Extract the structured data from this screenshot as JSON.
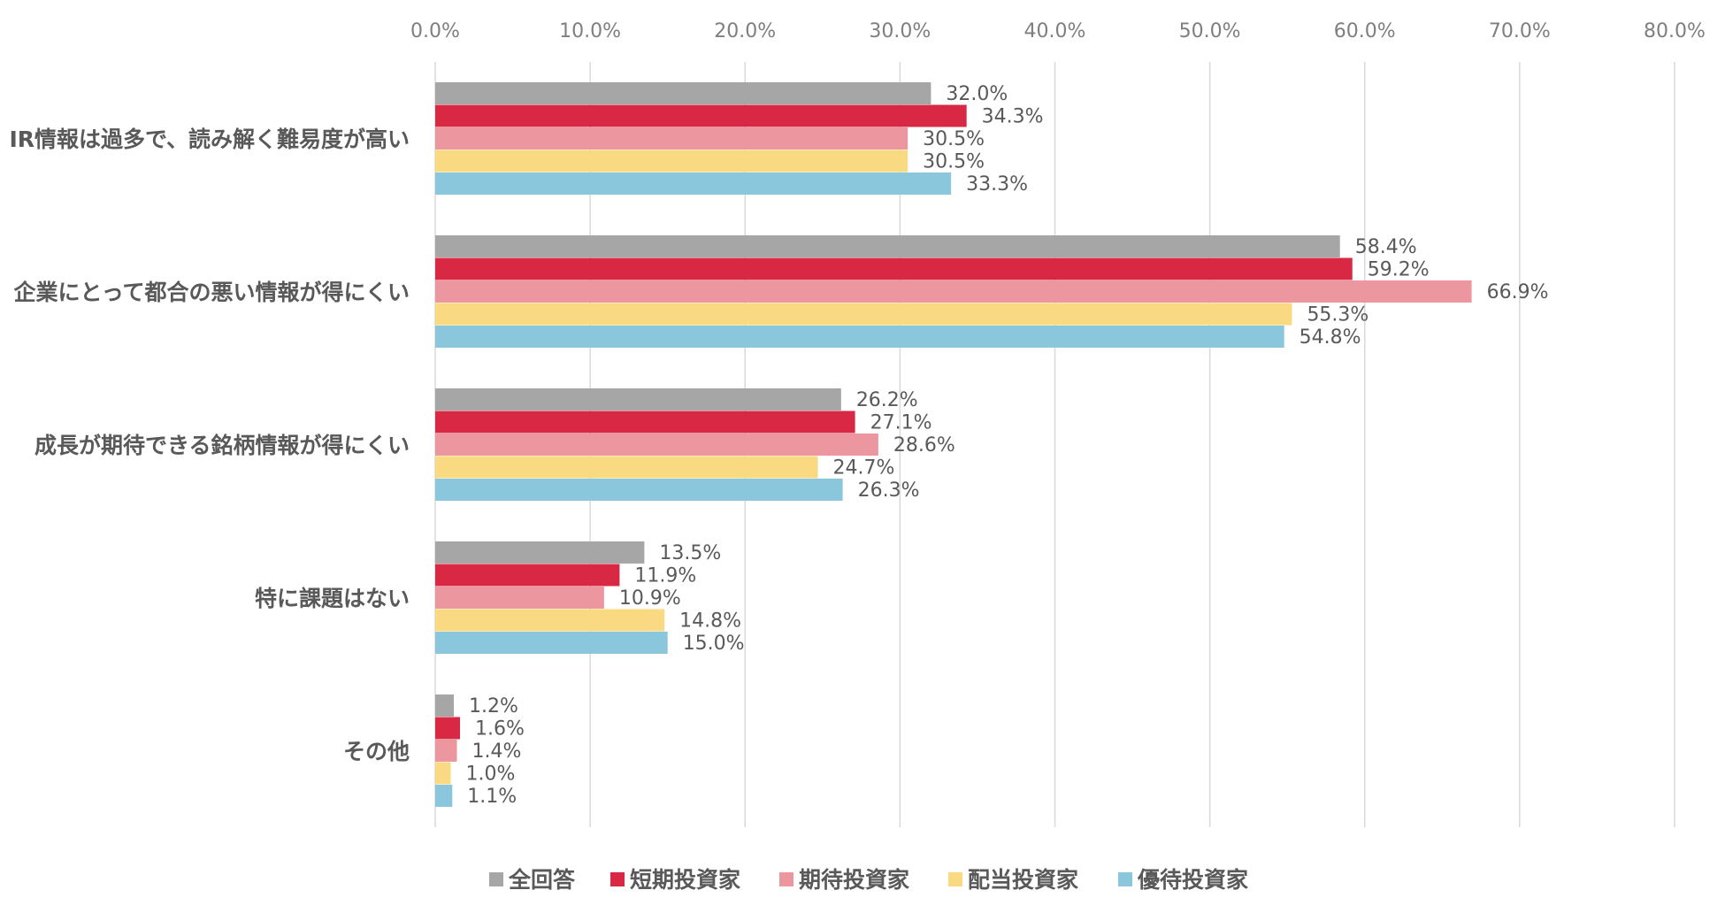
{
  "chart_data": {
    "type": "bar",
    "orientation": "horizontal",
    "title": "",
    "xlabel": "",
    "ylabel": "",
    "xlim": [
      0,
      80
    ],
    "x_ticks": [
      "0.0%",
      "10.0%",
      "20.0%",
      "30.0%",
      "40.0%",
      "50.0%",
      "60.0%",
      "70.0%",
      "80.0%"
    ],
    "x_tick_values": [
      0,
      10,
      20,
      30,
      40,
      50,
      60,
      70,
      80
    ],
    "x_axis_position": "top",
    "grid": true,
    "legend_position": "bottom",
    "categories": [
      "IR情報は過多で、読み解く難易度が高い",
      "企業にとって都合の悪い情報が得にくい",
      "成長が期待できる銘柄情報が得にくい",
      "特に課題はない",
      "その他"
    ],
    "series": [
      {
        "name": "全回答",
        "color": "#a6a6a6",
        "values": [
          32.0,
          58.4,
          26.2,
          13.5,
          1.2
        ],
        "labels": [
          "32.0%",
          "58.4%",
          "26.2%",
          "13.5%",
          "1.2%"
        ]
      },
      {
        "name": "短期投資家",
        "color": "#d92843",
        "values": [
          34.3,
          59.2,
          27.1,
          11.9,
          1.6
        ],
        "labels": [
          "34.3%",
          "59.2%",
          "27.1%",
          "11.9%",
          "1.6%"
        ]
      },
      {
        "name": "期待投資家",
        "color": "#ec969f",
        "values": [
          30.5,
          66.9,
          28.6,
          10.9,
          1.4
        ],
        "labels": [
          "30.5%",
          "66.9%",
          "28.6%",
          "10.9%",
          "1.4%"
        ]
      },
      {
        "name": "配当投資家",
        "color": "#f9d981",
        "values": [
          30.5,
          55.3,
          24.7,
          14.8,
          1.0
        ],
        "labels": [
          "30.5%",
          "55.3%",
          "24.7%",
          "14.8%",
          "1.0%"
        ]
      },
      {
        "name": "優待投資家",
        "color": "#8ac7dc",
        "values": [
          33.3,
          54.8,
          26.3,
          15.0,
          1.1
        ],
        "labels": [
          "33.3%",
          "54.8%",
          "26.3%",
          "15.0%",
          "1.1%"
        ]
      }
    ]
  }
}
